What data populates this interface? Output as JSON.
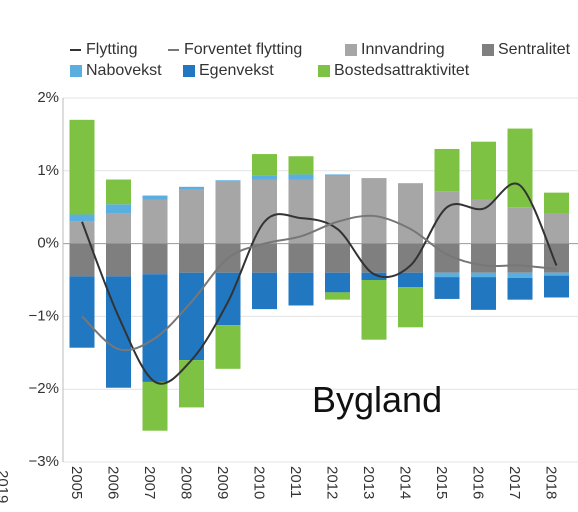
{
  "chart_data": {
    "type": "bar",
    "categories": [
      "2005",
      "2006",
      "2007",
      "2008",
      "2009",
      "2010",
      "2011",
      "2012",
      "2013",
      "2014",
      "2015",
      "2016",
      "2017",
      "2018"
    ],
    "series": [
      {
        "name": "Innvandring",
        "color": "#a6a6a6",
        "values": [
          0.3,
          0.42,
          0.6,
          0.75,
          0.85,
          0.88,
          0.88,
          0.93,
          0.9,
          0.83,
          0.72,
          0.6,
          0.5,
          0.42
        ]
      },
      {
        "name": "Sentralitet",
        "color": "#7f7f7f",
        "values": [
          -0.45,
          -0.45,
          -0.42,
          -0.4,
          -0.4,
          -0.4,
          -0.4,
          -0.4,
          -0.4,
          -0.4,
          -0.4,
          -0.4,
          -0.4,
          -0.4
        ]
      },
      {
        "name": "Nabovekst",
        "color": "#5aaee0",
        "values": [
          0.1,
          0.12,
          0.06,
          0.03,
          0.02,
          0.05,
          0.07,
          0.02,
          0,
          0,
          -0.06,
          -0.06,
          -0.07,
          -0.04
        ]
      },
      {
        "name": "Egenvekst",
        "color": "#2177c0",
        "values": [
          -0.98,
          -1.53,
          -1.48,
          -1.2,
          -0.72,
          -0.5,
          -0.45,
          -0.27,
          -0.1,
          -0.2,
          -0.3,
          -0.45,
          -0.3,
          -0.3
        ]
      },
      {
        "name": "Bostedsattraktivitet",
        "color": "#7dc242",
        "values": [
          1.3,
          0.34,
          -0.67,
          -0.65,
          -0.6,
          0.3,
          0.25,
          -0.1,
          -0.82,
          -0.55,
          0.58,
          0.8,
          1.08,
          0.28
        ]
      }
    ],
    "lines": [
      {
        "name": "Flytting",
        "color": "#333333",
        "values": [
          0.3,
          -1.0,
          -1.9,
          -1.6,
          -0.8,
          0.3,
          0.35,
          0.2,
          -0.42,
          -0.3,
          0.5,
          0.48,
          0.8,
          -0.3
        ]
      },
      {
        "name": "Forventet flytting",
        "color": "#777777",
        "values": [
          -1.0,
          -1.45,
          -1.3,
          -0.8,
          -0.2,
          0.0,
          0.1,
          0.3,
          0.38,
          0.2,
          -0.15,
          -0.3,
          -0.3,
          -0.35
        ]
      }
    ],
    "ylim": [
      -3,
      2
    ],
    "yticks": [
      {
        "value": 2,
        "label": "2%"
      },
      {
        "value": 1,
        "label": "1%"
      },
      {
        "value": 0,
        "label": "0%"
      },
      {
        "value": -1,
        "label": "−1%"
      },
      {
        "value": -2,
        "label": "−2%"
      },
      {
        "value": -3,
        "label": "−3%"
      }
    ],
    "grid": true,
    "annotation": "Bygland",
    "left_fragment_label": "2019"
  }
}
